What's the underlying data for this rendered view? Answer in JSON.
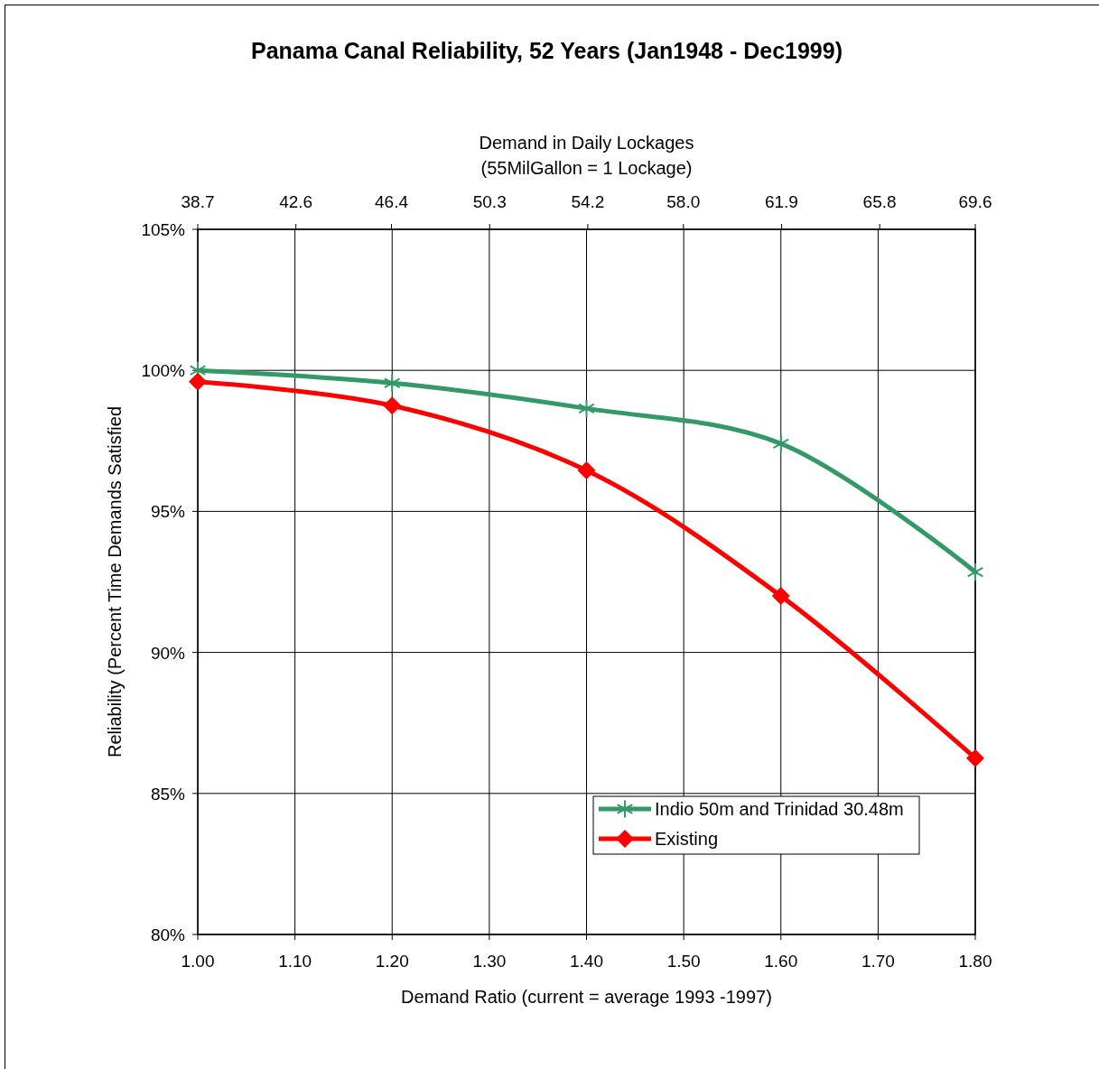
{
  "chart_data": {
    "type": "line",
    "title": "Panama Canal Reliability, 52 Years (Jan1948 - Dec1999)",
    "xlabel": "Demand Ratio (current = average 1993 -1997)",
    "x2label": "Demand in Daily Lockages\n(55MilGallon = 1 Lockage)",
    "ylabel": "Reliability (Percent Time Demands Satisfied",
    "x": [
      1.0,
      1.2,
      1.4,
      1.6,
      1.8
    ],
    "series": [
      {
        "name": "Indio 50m and Trinidad 30.48m",
        "color": "#339966",
        "marker": "cross",
        "values": [
          100,
          99.55,
          98.65,
          97.4,
          92.85
        ]
      },
      {
        "name": "Existing",
        "color": "#ff0000",
        "marker": "diamond",
        "values": [
          99.6,
          98.75,
          96.45,
          92.0,
          86.25
        ]
      }
    ],
    "xlim": [
      1.0,
      1.8
    ],
    "xticks": [
      {
        "value": 1.0,
        "label": "1.00"
      },
      {
        "value": 1.1,
        "label": "1.10"
      },
      {
        "value": 1.2,
        "label": "1.20"
      },
      {
        "value": 1.3,
        "label": "1.30"
      },
      {
        "value": 1.4,
        "label": "1.40"
      },
      {
        "value": 1.5,
        "label": "1.50"
      },
      {
        "value": 1.6,
        "label": "1.60"
      },
      {
        "value": 1.7,
        "label": "1.70"
      },
      {
        "value": 1.8,
        "label": "1.80"
      }
    ],
    "x2lim": [
      38.7,
      69.6
    ],
    "x2ticks": [
      38.7,
      42.6,
      46.4,
      50.3,
      54.2,
      {
        "value": 58,
        "label": "58.0"
      },
      61.9,
      65.8,
      69.6
    ],
    "ylim": [
      80,
      105
    ],
    "yticks": [
      {
        "value": 80,
        "label": "80%"
      },
      {
        "value": 85,
        "label": "85%"
      },
      {
        "value": 90,
        "label": "90%"
      },
      {
        "value": 95,
        "label": "95%"
      },
      {
        "value": 100,
        "label": "100%"
      },
      {
        "value": 105,
        "label": "105%"
      }
    ],
    "grid": true,
    "legend": "bottom right",
    "line_style": "solid"
  }
}
